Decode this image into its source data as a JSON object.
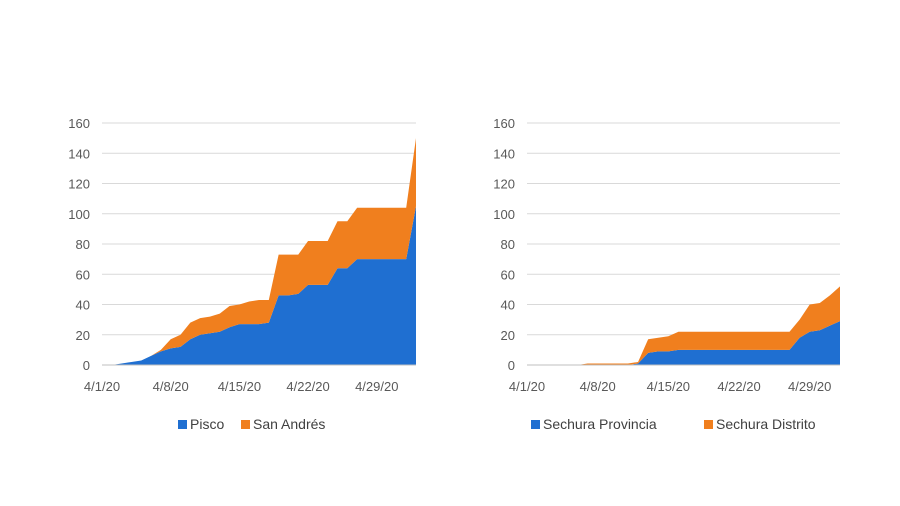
{
  "chart_data": [
    {
      "type": "area",
      "stacked": true,
      "x": [
        "4/1/20",
        "4/2/20",
        "4/3/20",
        "4/4/20",
        "4/5/20",
        "4/6/20",
        "4/7/20",
        "4/8/20",
        "4/9/20",
        "4/10/20",
        "4/11/20",
        "4/12/20",
        "4/13/20",
        "4/14/20",
        "4/15/20",
        "4/16/20",
        "4/17/20",
        "4/18/20",
        "4/19/20",
        "4/20/20",
        "4/21/20",
        "4/22/20",
        "4/23/20",
        "4/24/20",
        "4/25/20",
        "4/26/20",
        "4/27/20",
        "4/28/20",
        "4/29/20",
        "4/30/20",
        "5/1/20",
        "5/2/20",
        "5/3/20"
      ],
      "x_tick_labels": [
        "4/1/20",
        "4/8/20",
        "4/15/20",
        "4/22/20",
        "4/29/20"
      ],
      "series": [
        {
          "name": "Pisco",
          "color": "#1f6fd1",
          "values": [
            0,
            0,
            1,
            2,
            3,
            6,
            9,
            11,
            12,
            17,
            20,
            21,
            22,
            25,
            27,
            27,
            27,
            28,
            46,
            46,
            47,
            53,
            53,
            53,
            64,
            64,
            70,
            70,
            70,
            70,
            70,
            70,
            105
          ]
        },
        {
          "name": "San Andrés",
          "color": "#f07f1e",
          "values": [
            0,
            0,
            0,
            0,
            0,
            0,
            1,
            6,
            8,
            11,
            11,
            11,
            12,
            14,
            13,
            15,
            16,
            15,
            27,
            27,
            26,
            29,
            29,
            29,
            31,
            31,
            34,
            34,
            34,
            34,
            34,
            34,
            45
          ]
        }
      ],
      "ylim": [
        0,
        160
      ],
      "y_ticks": [
        0,
        20,
        40,
        60,
        80,
        100,
        120,
        140,
        160
      ],
      "grid": true,
      "legend": "bottom"
    },
    {
      "type": "area",
      "stacked": true,
      "x": [
        "4/1/20",
        "4/2/20",
        "4/3/20",
        "4/4/20",
        "4/5/20",
        "4/6/20",
        "4/7/20",
        "4/8/20",
        "4/9/20",
        "4/10/20",
        "4/11/20",
        "4/12/20",
        "4/13/20",
        "4/14/20",
        "4/15/20",
        "4/16/20",
        "4/17/20",
        "4/18/20",
        "4/19/20",
        "4/20/20",
        "4/21/20",
        "4/22/20",
        "4/23/20",
        "4/24/20",
        "4/25/20",
        "4/26/20",
        "4/27/20",
        "4/28/20",
        "4/29/20",
        "4/30/20",
        "5/1/20",
        "5/2/20"
      ],
      "x_tick_labels": [
        "4/1/20",
        "4/8/20",
        "4/15/20",
        "4/22/20",
        "4/29/20"
      ],
      "series": [
        {
          "name": "Sechura Provincia",
          "color": "#1f6fd1",
          "values": [
            0,
            0,
            0,
            0,
            0,
            0,
            0,
            0,
            0,
            0,
            0,
            1,
            8,
            9,
            9,
            10,
            10,
            10,
            10,
            10,
            10,
            10,
            10,
            10,
            10,
            10,
            10,
            18,
            22,
            23,
            26,
            29
          ]
        },
        {
          "name": "Sechura Distrito",
          "color": "#f07f1e",
          "values": [
            0,
            0,
            0,
            0,
            0,
            0,
            1,
            1,
            1,
            1,
            1,
            1,
            9,
            9,
            10,
            12,
            12,
            12,
            12,
            12,
            12,
            12,
            12,
            12,
            12,
            12,
            12,
            12,
            18,
            18,
            20,
            23
          ]
        }
      ],
      "ylim": [
        0,
        160
      ],
      "y_ticks": [
        0,
        20,
        40,
        60,
        80,
        100,
        120,
        140,
        160
      ],
      "grid": true,
      "legend": "bottom"
    }
  ]
}
